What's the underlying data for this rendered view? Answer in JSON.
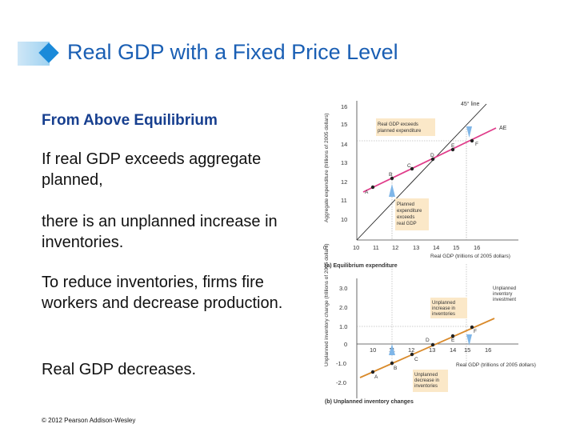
{
  "slide": {
    "title": "Real GDP with a Fixed Price Level",
    "subheading": "From Above Equilibrium",
    "paragraphs": [
      "If real GDP exceeds aggregate planned,",
      "there is an unplanned increase in inventories.",
      "To reduce inventories, firms fire workers and decrease production.",
      "Real GDP decreases."
    ],
    "copyright": "© 2012 Pearson Addison-Wesley"
  },
  "figure_a": {
    "ylabel": "Aggregate expenditure (trillions of 2005 dollars)",
    "yticks": [
      "10",
      "11",
      "12",
      "13",
      "14",
      "15",
      "16"
    ],
    "xticks": [
      "0",
      "10",
      "11",
      "12",
      "13",
      "14",
      "15",
      "16"
    ],
    "xlabel": "Real GDP (trillions of 2005 dollars)",
    "caption": "(a) Equilibrium expenditure",
    "line45": "45° line",
    "ae_label": "AE",
    "point_labels": [
      "A",
      "B",
      "C",
      "D",
      "E",
      "F"
    ],
    "note_top": "Real GDP exceeds planned expenditure",
    "note_bottom": "Planned expenditure exceeds real GDP"
  },
  "figure_b": {
    "ylabel": "Unplanned inventory change (trillions of 2005 dollars)",
    "yticks": [
      "3.0",
      "2.0",
      "1.0",
      "0",
      "-1.0",
      "-2.0"
    ],
    "xticks": [
      "10",
      "11",
      "12",
      "13",
      "14",
      "15",
      "16"
    ],
    "xlabel": "Real GDP (trillions of 2005 dollars)",
    "caption": "(b) Unplanned inventory changes",
    "line_label": "Unplanned inventory investment",
    "point_labels": [
      "A",
      "B",
      "C",
      "D",
      "E",
      "F"
    ],
    "note_top": "Unplanned increase in inventories",
    "note_bottom": "Unplanned decrease in inventories"
  },
  "colors": {
    "title": "#1a5fb4",
    "subheading": "#173f8f",
    "ae_line": "#e03c8a",
    "inventory_line": "#d98a2b",
    "note_box": "#fbe8c8",
    "arrow": "#7fb6e8"
  }
}
